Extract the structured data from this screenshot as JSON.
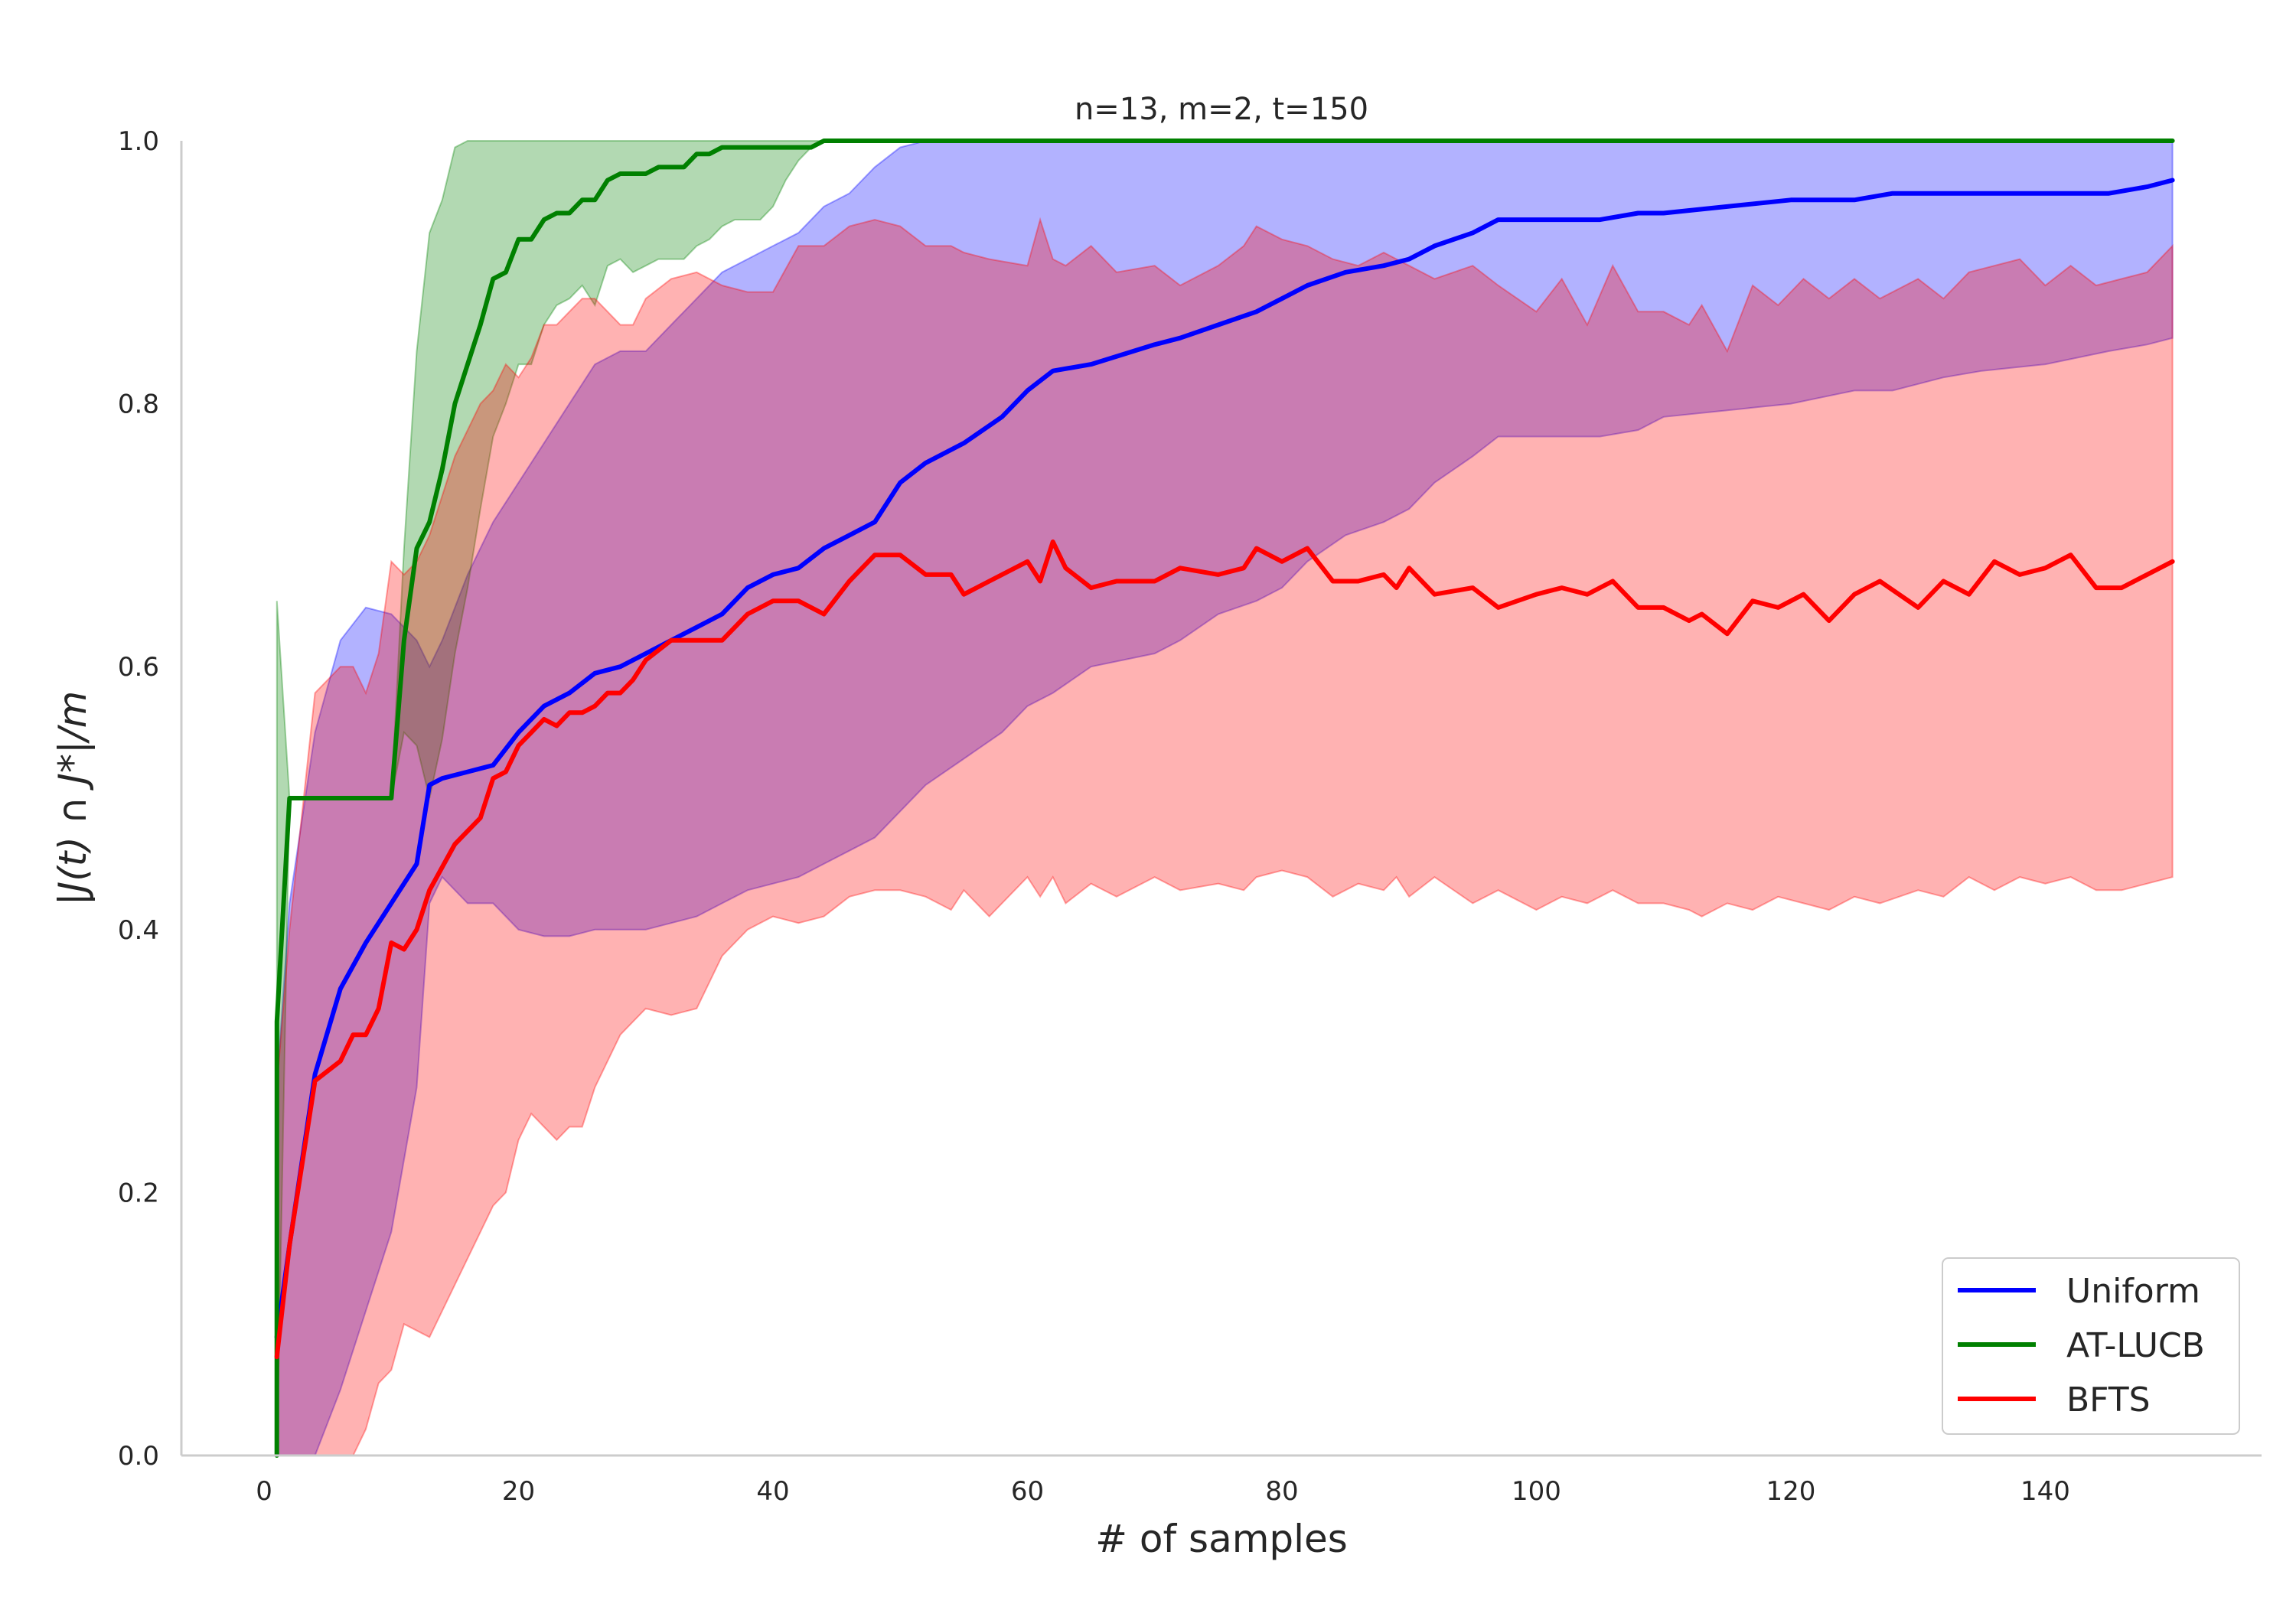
{
  "chart_data": {
    "type": "line",
    "title": "n=13, m=2, t=150",
    "xlabel": "# of samples",
    "ylabel": "|J(t) ∩ J*|/m",
    "xlim": [
      -6.5,
      157
    ],
    "ylim": [
      0,
      1
    ],
    "xticks": [
      0,
      20,
      40,
      60,
      80,
      100,
      120,
      140
    ],
    "yticks": [
      0.0,
      0.2,
      0.4,
      0.6,
      0.8,
      1.0
    ],
    "xtick_labels": [
      "0",
      "20",
      "40",
      "60",
      "80",
      "100",
      "120",
      "140"
    ],
    "ytick_labels": [
      "0.0",
      "0.2",
      "0.4",
      "0.6",
      "0.8",
      "1.0"
    ],
    "legend_position": "bottom-right",
    "series": [
      {
        "name": "Uniform",
        "color": "#0000ff",
        "x": [
          1,
          2,
          4,
          6,
          8,
          10,
          12,
          13,
          14,
          16,
          18,
          20,
          22,
          24,
          26,
          28,
          30,
          32,
          34,
          36,
          38,
          40,
          42,
          44,
          46,
          48,
          50,
          52,
          55,
          58,
          60,
          62,
          65,
          70,
          72,
          75,
          78,
          80,
          82,
          85,
          88,
          90,
          92,
          95,
          97,
          100,
          105,
          108,
          110,
          115,
          120,
          125,
          128,
          132,
          135,
          140,
          145,
          148,
          150
        ],
        "mean": [
          0.09,
          0.16,
          0.29,
          0.355,
          0.39,
          0.42,
          0.45,
          0.51,
          0.515,
          0.52,
          0.525,
          0.55,
          0.57,
          0.58,
          0.595,
          0.6,
          0.61,
          0.62,
          0.63,
          0.64,
          0.66,
          0.67,
          0.675,
          0.69,
          0.7,
          0.71,
          0.74,
          0.755,
          0.77,
          0.79,
          0.81,
          0.825,
          0.83,
          0.845,
          0.85,
          0.86,
          0.87,
          0.88,
          0.89,
          0.9,
          0.905,
          0.91,
          0.92,
          0.93,
          0.94,
          0.94,
          0.94,
          0.945,
          0.945,
          0.95,
          0.955,
          0.955,
          0.96,
          0.96,
          0.96,
          0.96,
          0.96,
          0.965,
          0.97
        ],
        "upper": [
          0.28,
          0.42,
          0.55,
          0.62,
          0.645,
          0.64,
          0.62,
          0.6,
          0.62,
          0.67,
          0.71,
          0.74,
          0.77,
          0.8,
          0.83,
          0.84,
          0.84,
          0.86,
          0.88,
          0.9,
          0.91,
          0.92,
          0.93,
          0.95,
          0.96,
          0.98,
          0.995,
          1.0,
          1.0,
          1.0,
          1.0,
          1.0,
          1.0,
          1.0,
          1.0,
          1.0,
          1.0,
          1.0,
          1.0,
          1.0,
          1.0,
          1.0,
          1.0,
          1.0,
          1.0,
          1.0,
          1.0,
          1.0,
          1.0,
          1.0,
          1.0,
          1.0,
          1.0,
          1.0,
          1.0,
          1.0,
          1.0,
          1.0,
          1.0
        ],
        "lower": [
          0.0,
          0.0,
          0.0,
          0.05,
          0.11,
          0.17,
          0.28,
          0.42,
          0.44,
          0.42,
          0.42,
          0.4,
          0.395,
          0.395,
          0.4,
          0.4,
          0.4,
          0.405,
          0.41,
          0.42,
          0.43,
          0.435,
          0.44,
          0.45,
          0.46,
          0.47,
          0.49,
          0.51,
          0.53,
          0.55,
          0.57,
          0.58,
          0.6,
          0.61,
          0.62,
          0.64,
          0.65,
          0.66,
          0.68,
          0.7,
          0.71,
          0.72,
          0.74,
          0.76,
          0.775,
          0.775,
          0.775,
          0.78,
          0.79,
          0.795,
          0.8,
          0.81,
          0.81,
          0.82,
          0.825,
          0.83,
          0.84,
          0.845,
          0.85
        ]
      },
      {
        "name": "AT-LUCB",
        "color": "#008000",
        "x": [
          1,
          1.01,
          2,
          10,
          11,
          12,
          13,
          14,
          15,
          16,
          17,
          18,
          19,
          20,
          21,
          22,
          23,
          24,
          25,
          26,
          27,
          28,
          29,
          30,
          31,
          32,
          33,
          34,
          35,
          36,
          37,
          38,
          39,
          40,
          41,
          42,
          43,
          44,
          46,
          150
        ],
        "mean": [
          0.0,
          0.33,
          0.5,
          0.5,
          0.62,
          0.69,
          0.71,
          0.75,
          0.8,
          0.83,
          0.86,
          0.895,
          0.9,
          0.925,
          0.925,
          0.94,
          0.945,
          0.945,
          0.955,
          0.955,
          0.97,
          0.975,
          0.975,
          0.975,
          0.98,
          0.98,
          0.98,
          0.99,
          0.99,
          0.995,
          0.995,
          0.995,
          0.995,
          0.995,
          0.995,
          0.995,
          0.995,
          1.0,
          1.0,
          1.0
        ],
        "upper": [
          0.0,
          0.65,
          0.5,
          0.5,
          0.69,
          0.84,
          0.93,
          0.955,
          0.995,
          1.0,
          1.0,
          1.0,
          1.0,
          1.0,
          1.0,
          1.0,
          1.0,
          1.0,
          1.0,
          1.0,
          1.0,
          1.0,
          1.0,
          1.0,
          1.0,
          1.0,
          1.0,
          1.0,
          1.0,
          1.0,
          1.0,
          1.0,
          1.0,
          1.0,
          1.0,
          1.0,
          1.0,
          1.0,
          1.0,
          1.0
        ],
        "lower": [
          0.0,
          0.0,
          0.5,
          0.5,
          0.55,
          0.54,
          0.5,
          0.545,
          0.61,
          0.66,
          0.72,
          0.775,
          0.8,
          0.83,
          0.83,
          0.86,
          0.875,
          0.88,
          0.89,
          0.875,
          0.905,
          0.91,
          0.9,
          0.905,
          0.91,
          0.91,
          0.91,
          0.92,
          0.925,
          0.935,
          0.94,
          0.94,
          0.94,
          0.95,
          0.97,
          0.985,
          0.995,
          1.0,
          1.0,
          1.0
        ]
      },
      {
        "name": "BFTS",
        "color": "#ff0000",
        "x": [
          1,
          2,
          4,
          6,
          7,
          8,
          9,
          10,
          11,
          12,
          13,
          15,
          17,
          18,
          19,
          20,
          21,
          22,
          23,
          24,
          25,
          26,
          27,
          28,
          29,
          30,
          32,
          34,
          36,
          38,
          40,
          42,
          44,
          46,
          48,
          50,
          52,
          54,
          55,
          57,
          60,
          61,
          62,
          63,
          65,
          67,
          70,
          72,
          75,
          77,
          78,
          80,
          82,
          84,
          86,
          88,
          89,
          90,
          92,
          95,
          97,
          100,
          102,
          104,
          106,
          108,
          110,
          112,
          113,
          115,
          117,
          119,
          121,
          123,
          125,
          127,
          130,
          132,
          134,
          136,
          138,
          140,
          142,
          144,
          146,
          148,
          150
        ],
        "mean": [
          0.075,
          0.16,
          0.285,
          0.3,
          0.32,
          0.32,
          0.34,
          0.39,
          0.385,
          0.4,
          0.43,
          0.465,
          0.485,
          0.515,
          0.52,
          0.54,
          0.55,
          0.56,
          0.555,
          0.565,
          0.565,
          0.57,
          0.58,
          0.58,
          0.59,
          0.605,
          0.62,
          0.62,
          0.62,
          0.64,
          0.65,
          0.65,
          0.64,
          0.665,
          0.685,
          0.685,
          0.67,
          0.67,
          0.655,
          0.665,
          0.68,
          0.665,
          0.695,
          0.675,
          0.66,
          0.665,
          0.665,
          0.675,
          0.67,
          0.675,
          0.69,
          0.68,
          0.69,
          0.665,
          0.665,
          0.67,
          0.66,
          0.675,
          0.655,
          0.66,
          0.645,
          0.655,
          0.66,
          0.655,
          0.665,
          0.645,
          0.645,
          0.635,
          0.64,
          0.625,
          0.65,
          0.645,
          0.655,
          0.635,
          0.655,
          0.665,
          0.645,
          0.665,
          0.655,
          0.68,
          0.67,
          0.675,
          0.685,
          0.66,
          0.66,
          0.67,
          0.68
        ],
        "upper": [
          0.28,
          0.4,
          0.58,
          0.6,
          0.6,
          0.58,
          0.61,
          0.68,
          0.67,
          0.68,
          0.7,
          0.76,
          0.8,
          0.81,
          0.83,
          0.82,
          0.835,
          0.86,
          0.86,
          0.87,
          0.88,
          0.88,
          0.87,
          0.86,
          0.86,
          0.88,
          0.895,
          0.9,
          0.89,
          0.885,
          0.885,
          0.92,
          0.92,
          0.935,
          0.94,
          0.935,
          0.92,
          0.92,
          0.915,
          0.91,
          0.905,
          0.94,
          0.91,
          0.905,
          0.92,
          0.9,
          0.905,
          0.89,
          0.905,
          0.92,
          0.935,
          0.925,
          0.92,
          0.91,
          0.905,
          0.915,
          0.91,
          0.905,
          0.895,
          0.905,
          0.89,
          0.87,
          0.895,
          0.86,
          0.905,
          0.87,
          0.87,
          0.86,
          0.875,
          0.84,
          0.89,
          0.875,
          0.895,
          0.88,
          0.895,
          0.88,
          0.895,
          0.88,
          0.9,
          0.905,
          0.91,
          0.89,
          0.905,
          0.89,
          0.895,
          0.9,
          0.92
        ],
        "lower": [
          0.0,
          0.0,
          0.0,
          0.0,
          0.0,
          0.02,
          0.055,
          0.065,
          0.1,
          0.095,
          0.09,
          0.13,
          0.17,
          0.19,
          0.2,
          0.24,
          0.26,
          0.25,
          0.24,
          0.25,
          0.25,
          0.28,
          0.3,
          0.32,
          0.33,
          0.34,
          0.335,
          0.34,
          0.38,
          0.4,
          0.41,
          0.405,
          0.41,
          0.425,
          0.43,
          0.43,
          0.425,
          0.415,
          0.43,
          0.41,
          0.44,
          0.425,
          0.44,
          0.42,
          0.435,
          0.425,
          0.44,
          0.43,
          0.435,
          0.43,
          0.44,
          0.445,
          0.44,
          0.425,
          0.435,
          0.43,
          0.44,
          0.425,
          0.44,
          0.42,
          0.43,
          0.415,
          0.425,
          0.42,
          0.43,
          0.42,
          0.42,
          0.415,
          0.41,
          0.42,
          0.415,
          0.425,
          0.42,
          0.415,
          0.425,
          0.42,
          0.43,
          0.425,
          0.44,
          0.43,
          0.44,
          0.435,
          0.44,
          0.43,
          0.43,
          0.435,
          0.44
        ]
      }
    ]
  }
}
